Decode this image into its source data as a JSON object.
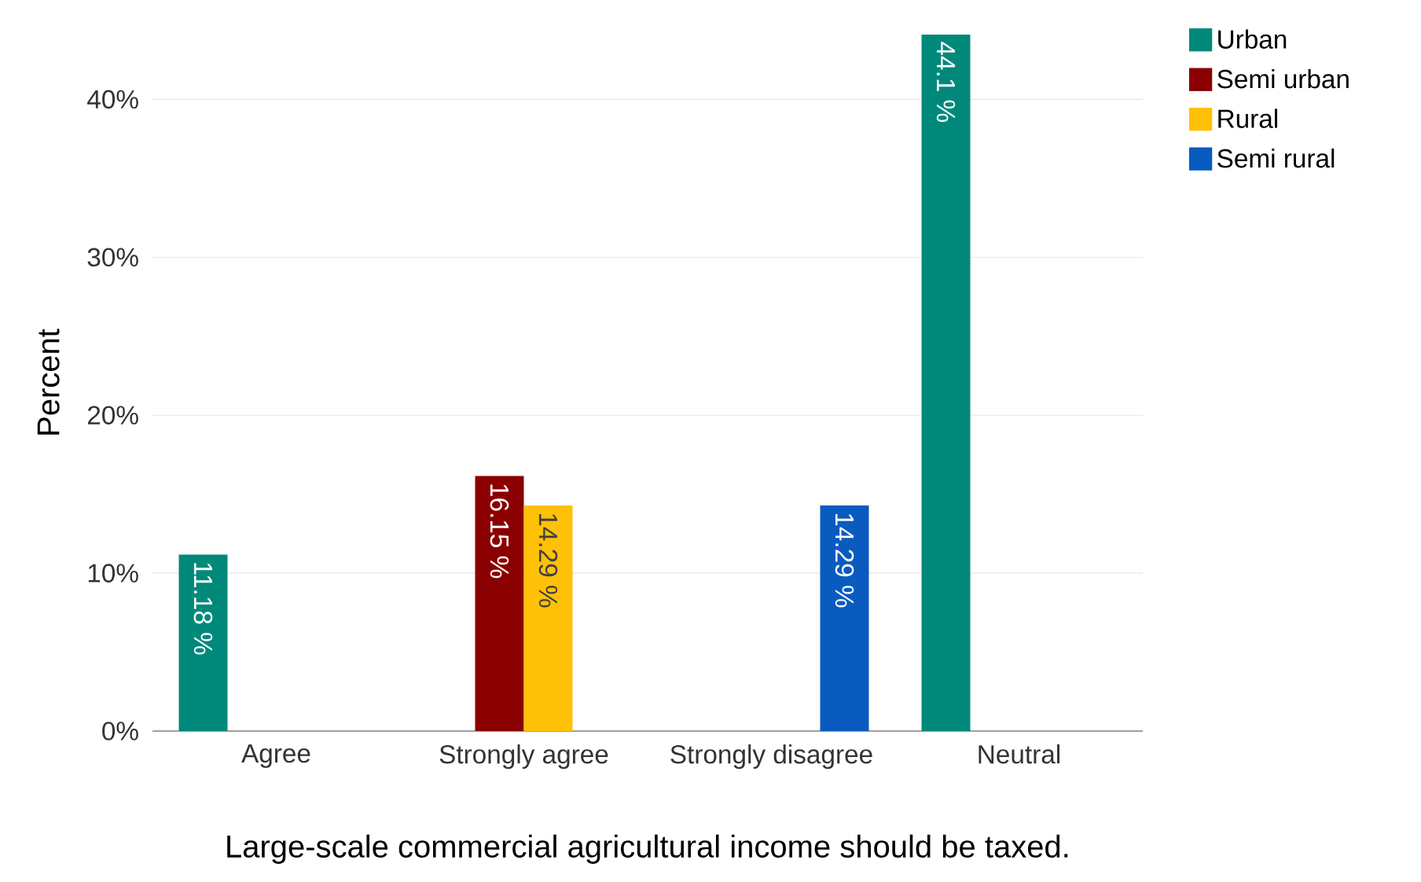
{
  "chart_data": {
    "type": "bar",
    "xlabel": "Large-scale commercial agricultural income should be taxed.",
    "ylabel": "Percent",
    "categories": [
      "Agree",
      "Strongly agree",
      "Strongly disagree",
      "Neutral"
    ],
    "series": [
      {
        "name": "Urban",
        "color": "#00897b",
        "values": [
          11.18,
          null,
          null,
          44.1
        ],
        "value_labels": [
          "11.18 %",
          null,
          null,
          "44.1 %"
        ]
      },
      {
        "name": "Semi urban",
        "color": "#8b0000",
        "values": [
          null,
          16.15,
          null,
          null
        ],
        "value_labels": [
          null,
          "16.15 %",
          null,
          null
        ]
      },
      {
        "name": "Rural",
        "color": "#ffc107",
        "values": [
          null,
          14.29,
          null,
          null
        ],
        "value_labels": [
          null,
          "14.29 %",
          null,
          null
        ]
      },
      {
        "name": "Semi rural",
        "color": "#0a5bbf",
        "values": [
          null,
          null,
          14.29,
          null
        ],
        "value_labels": [
          null,
          null,
          "14.29 %",
          null
        ]
      }
    ],
    "ylim": [
      0,
      44.1
    ],
    "yticks": [
      {
        "value": 0,
        "label": "0%"
      },
      {
        "value": 10,
        "label": "10%"
      },
      {
        "value": 20,
        "label": "20%"
      },
      {
        "value": 30,
        "label": "30%"
      },
      {
        "value": 40,
        "label": "40%"
      }
    ],
    "grid": "y",
    "legend": "top right"
  }
}
